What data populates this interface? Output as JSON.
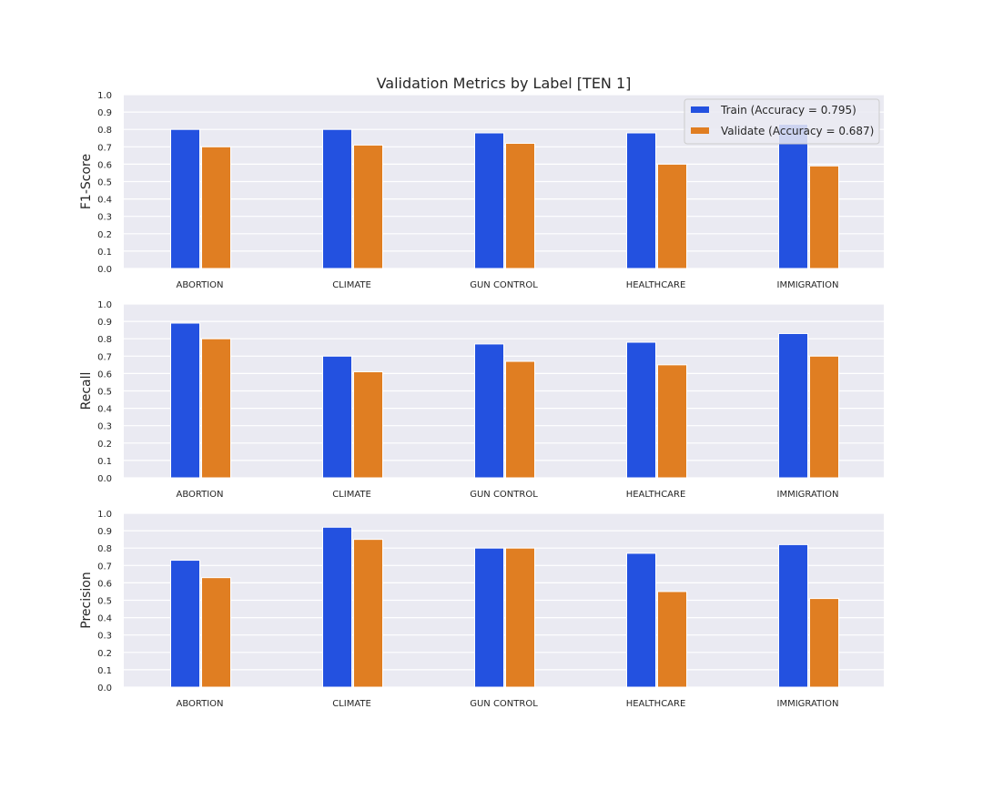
{
  "chart_data": {
    "type": "bar",
    "title": "Validation Metrics by Label [TEN 1]",
    "categories": [
      "ABORTION",
      "CLIMATE",
      "GUN CONTROL",
      "HEALTHCARE",
      "IMMIGRATION"
    ],
    "legend": {
      "placement": "top-right",
      "entries": [
        {
          "name": "Train (Accuracy = 0.795)",
          "color": "#2351e0"
        },
        {
          "name": "Validate (Accuracy = 0.687)",
          "color": "#e07e22"
        }
      ]
    },
    "ylim": [
      0,
      1.0
    ],
    "yticks": [
      "0.0",
      "0.1",
      "0.2",
      "0.3",
      "0.4",
      "0.5",
      "0.6",
      "0.7",
      "0.8",
      "0.9",
      "1.0"
    ],
    "grid": true,
    "background_color": "#eaeaf2",
    "panels": [
      {
        "ylabel": "F1-Score",
        "series": [
          {
            "name": "Train (Accuracy = 0.795)",
            "values": [
              0.8,
              0.8,
              0.78,
              0.78,
              0.83
            ]
          },
          {
            "name": "Validate (Accuracy = 0.687)",
            "values": [
              0.7,
              0.71,
              0.72,
              0.6,
              0.59
            ]
          }
        ]
      },
      {
        "ylabel": "Recall",
        "series": [
          {
            "name": "Train (Accuracy = 0.795)",
            "values": [
              0.89,
              0.7,
              0.77,
              0.78,
              0.83
            ]
          },
          {
            "name": "Validate (Accuracy = 0.687)",
            "values": [
              0.8,
              0.61,
              0.67,
              0.65,
              0.7
            ]
          }
        ]
      },
      {
        "ylabel": "Precision",
        "series": [
          {
            "name": "Train (Accuracy = 0.795)",
            "values": [
              0.73,
              0.92,
              0.8,
              0.77,
              0.82
            ]
          },
          {
            "name": "Validate (Accuracy = 0.687)",
            "values": [
              0.63,
              0.85,
              0.8,
              0.55,
              0.51
            ]
          }
        ]
      }
    ]
  }
}
